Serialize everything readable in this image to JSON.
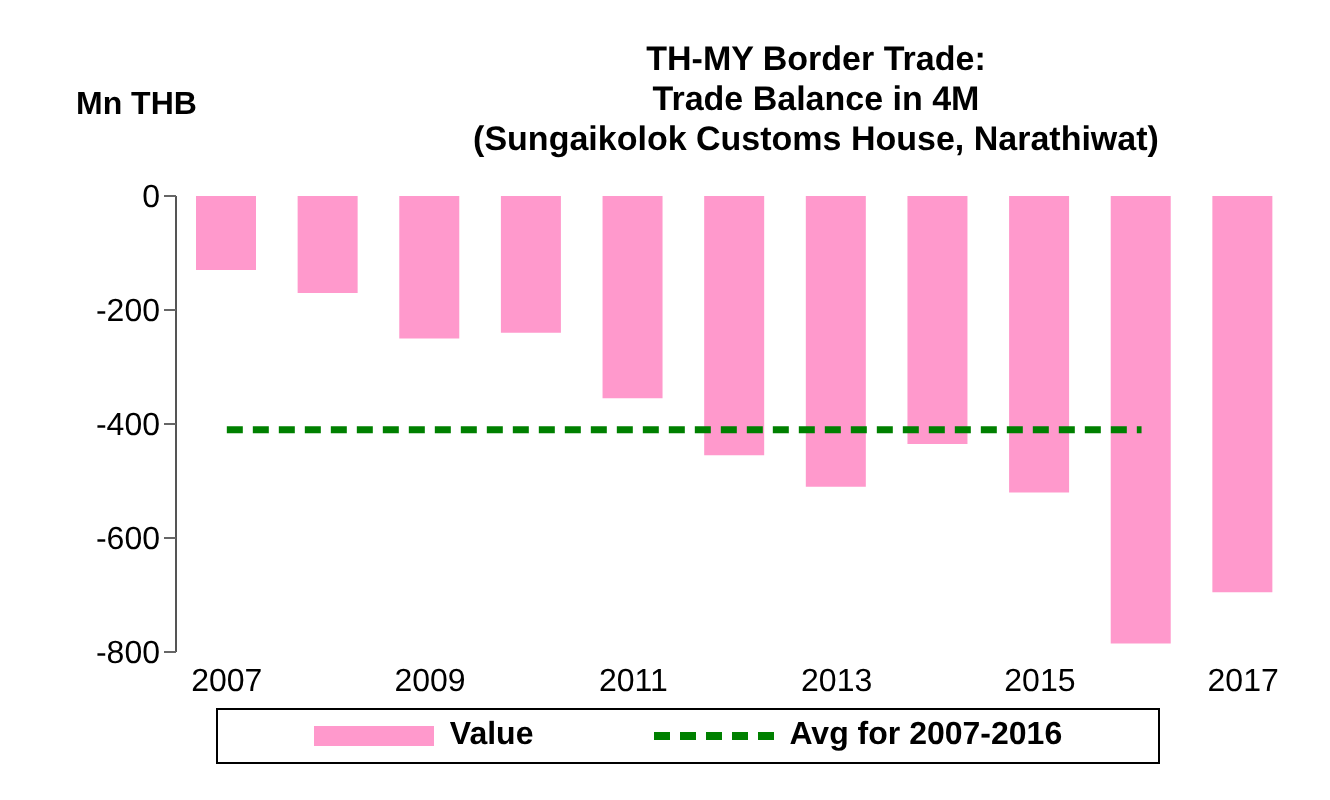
{
  "chart_data": {
    "type": "bar",
    "title": "TH-MY Border Trade:\nTrade Balance in 4M\n(Sungaikolok Customs House, Narathiwat)",
    "ylabel": "Mn THB",
    "categories": [
      "2007",
      null,
      "2009",
      null,
      "2011",
      null,
      "2013",
      null,
      "2015",
      null,
      "2017"
    ],
    "series": [
      {
        "name": "Value",
        "color": "#ff99cc",
        "values": [
          -130,
          -170,
          -250,
          -240,
          -355,
          -455,
          -510,
          -435,
          -520,
          -785,
          -695
        ]
      },
      {
        "name": "Avg for 2007-2016",
        "type": "line",
        "color": "#008000",
        "line_style": "dashed",
        "marker": "none",
        "values": [
          -410,
          -410,
          -410,
          -410,
          -410,
          -410,
          -410,
          -410,
          -410,
          -410,
          null
        ]
      }
    ],
    "ylim": [
      -800,
      0
    ],
    "yticks": [
      -800,
      -600,
      -400,
      -200,
      0
    ],
    "legend": "bottom"
  }
}
